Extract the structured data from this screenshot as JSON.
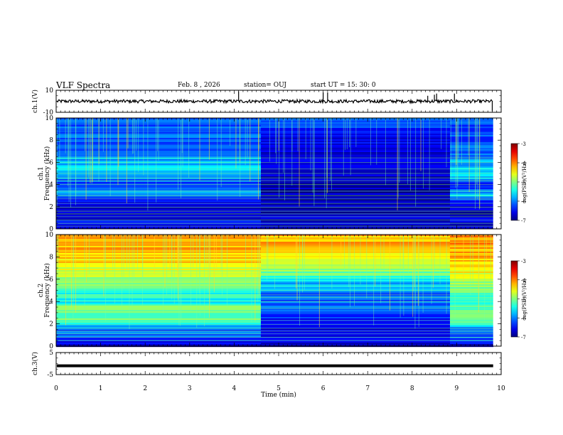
{
  "header": {
    "title": "VLF Spectra",
    "date": "Feb. 8 , 2026",
    "station": "station= OUJ",
    "start": "start  UT =   15: 30: 0"
  },
  "colors": {
    "background": "#ffffff",
    "axis": "#000000",
    "spec_low": "#000080",
    "spec_high": "#ff0000"
  },
  "chart_data": [
    {
      "id": "ch1-waveform",
      "type": "line",
      "title": "",
      "xlabel": "",
      "ylabel": "ch.1(V)",
      "xlim": [
        0,
        10
      ],
      "ylim": [
        -10,
        10
      ],
      "y_ticks": [
        "10",
        "-10"
      ],
      "baseline": 0,
      "spikes": [
        {
          "t": 4.1,
          "v": 9
        },
        {
          "t": 6.0,
          "v": 8
        },
        {
          "t": 6.1,
          "v": 8
        },
        {
          "t": 8.35,
          "v": 5
        },
        {
          "t": 8.5,
          "v": 6
        },
        {
          "t": 8.55,
          "v": 7
        },
        {
          "t": 8.95,
          "v": 7
        },
        {
          "t": 9.8,
          "v": -9
        }
      ],
      "data_end_min": 9.82
    },
    {
      "id": "ch1-spectrogram",
      "type": "heatmap",
      "title": "",
      "xlabel": "",
      "ylabel": "ch.1",
      "ylabel2": "Frequency  (kHz)",
      "xlim": [
        0,
        10
      ],
      "ylim": [
        0,
        10
      ],
      "y_ticks": [
        "0",
        "2",
        "4",
        "6",
        "8",
        "10"
      ],
      "data_end_min": 9.82,
      "time_segments": [
        {
          "from_min": 0,
          "to_min": 4.6
        },
        {
          "from_min": 4.6,
          "to_min": 8.85
        },
        {
          "from_min": 8.85,
          "to_min": 9.82
        }
      ],
      "profile_khz": [
        0,
        0.5,
        1,
        1.5,
        2,
        2.5,
        3,
        3.5,
        4,
        4.5,
        5,
        5.5,
        6,
        6.5,
        7,
        7.5,
        8,
        8.5,
        9,
        9.5,
        10
      ],
      "profiles_log_psd": [
        [
          -6.9,
          -6.5,
          -6.6,
          -6.8,
          -6.7,
          -6.5,
          -5.8,
          -6.1,
          -6.4,
          -6.0,
          -5.7,
          -5.7,
          -5.8,
          -5.9,
          -6.1,
          -6.1,
          -6.2,
          -6.1,
          -6.2,
          -6.2,
          -6.2
        ],
        [
          -6.9,
          -6.6,
          -6.7,
          -6.8,
          -6.8,
          -6.8,
          -6.7,
          -6.8,
          -6.8,
          -6.8,
          -6.7,
          -6.6,
          -6.5,
          -6.6,
          -6.6,
          -6.5,
          -6.6,
          -6.4,
          -6.3,
          -6.3,
          -6.2
        ],
        [
          -6.9,
          -6.6,
          -6.7,
          -6.8,
          -6.6,
          -6.4,
          -5.7,
          -6.1,
          -6.4,
          -5.9,
          -5.6,
          -5.7,
          -5.8,
          -6.0,
          -6.1,
          -6.1,
          -6.2,
          -6.1,
          -6.2,
          -6.2,
          -6.2
        ]
      ],
      "tone_lines_khz": [
        0.25,
        0.5,
        0.8,
        1.1,
        1.35,
        1.6,
        1.95,
        2.3,
        2.7,
        3.0,
        3.4,
        4.0,
        4.35,
        4.6,
        5.0,
        5.4,
        6.0,
        6.4
      ],
      "colorbar": {
        "label": "log(PSD)(V²/Hz)",
        "min": -7,
        "max": -3,
        "ticks": [
          "-3",
          "-4",
          "-5",
          "-6",
          "-7"
        ]
      }
    },
    {
      "id": "ch2-spectrogram",
      "type": "heatmap",
      "title": "",
      "xlabel": "",
      "ylabel": "ch.2",
      "ylabel2": "Frequency  (kHz)",
      "xlim": [
        0,
        10
      ],
      "ylim": [
        0,
        10
      ],
      "y_ticks": [
        "0",
        "2",
        "4",
        "6",
        "8",
        "10"
      ],
      "data_end_min": 9.82,
      "time_segments": [
        {
          "from_min": 0,
          "to_min": 4.6
        },
        {
          "from_min": 4.6,
          "to_min": 8.85
        },
        {
          "from_min": 8.85,
          "to_min": 9.82
        }
      ],
      "profile_khz": [
        0,
        0.5,
        1,
        1.5,
        2,
        2.5,
        3,
        3.5,
        4,
        4.5,
        5,
        5.5,
        6,
        6.5,
        7,
        7.5,
        8,
        8.5,
        9,
        9.5,
        10
      ],
      "profiles_log_psd": [
        [
          -6.7,
          -6.3,
          -6.0,
          -6.2,
          -5.3,
          -5.0,
          -5.1,
          -5.0,
          -5.6,
          -5.4,
          -5.3,
          -5.0,
          -4.9,
          -4.8,
          -4.6,
          -4.4,
          -4.3,
          -4.2,
          -4.2,
          -4.1,
          -4.1
        ],
        [
          -6.8,
          -6.4,
          -6.5,
          -6.6,
          -6.4,
          -6.4,
          -6.3,
          -6.2,
          -6.1,
          -6.2,
          -5.9,
          -5.8,
          -5.5,
          -5.1,
          -4.8,
          -4.6,
          -4.4,
          -4.3,
          -4.2,
          -4.2,
          -4.2
        ],
        [
          -6.7,
          -6.3,
          -6.1,
          -6.2,
          -5.4,
          -5.0,
          -5.1,
          -5.1,
          -5.5,
          -5.4,
          -5.0,
          -4.9,
          -4.7,
          -4.6,
          -4.4,
          -4.3,
          -4.2,
          -4.2,
          -4.1,
          -4.1,
          -4.1
        ]
      ],
      "tone_lines_khz": [
        0.5,
        0.8,
        1.1,
        1.35,
        1.6,
        1.95,
        2.3,
        3.4,
        4.0,
        4.35,
        4.6,
        5.0,
        5.4
      ],
      "colorbar": {
        "label": "log(PSD)(V²/Hz)",
        "min": -7,
        "max": -3,
        "ticks": [
          "-3",
          "-4",
          "-5",
          "-6",
          "-7"
        ]
      }
    },
    {
      "id": "ch3-waveform",
      "type": "line",
      "title": "",
      "xlabel": "Time  (min)",
      "ylabel": "ch.3(V)",
      "xlim": [
        0,
        10
      ],
      "ylim": [
        -5,
        5
      ],
      "y_ticks": [
        "5",
        "-5"
      ],
      "x_ticks": [
        "0",
        "1",
        "2",
        "3",
        "4",
        "5",
        "6",
        "7",
        "8",
        "9",
        "10"
      ],
      "level": -1.0,
      "data_end_min": 9.82
    }
  ]
}
